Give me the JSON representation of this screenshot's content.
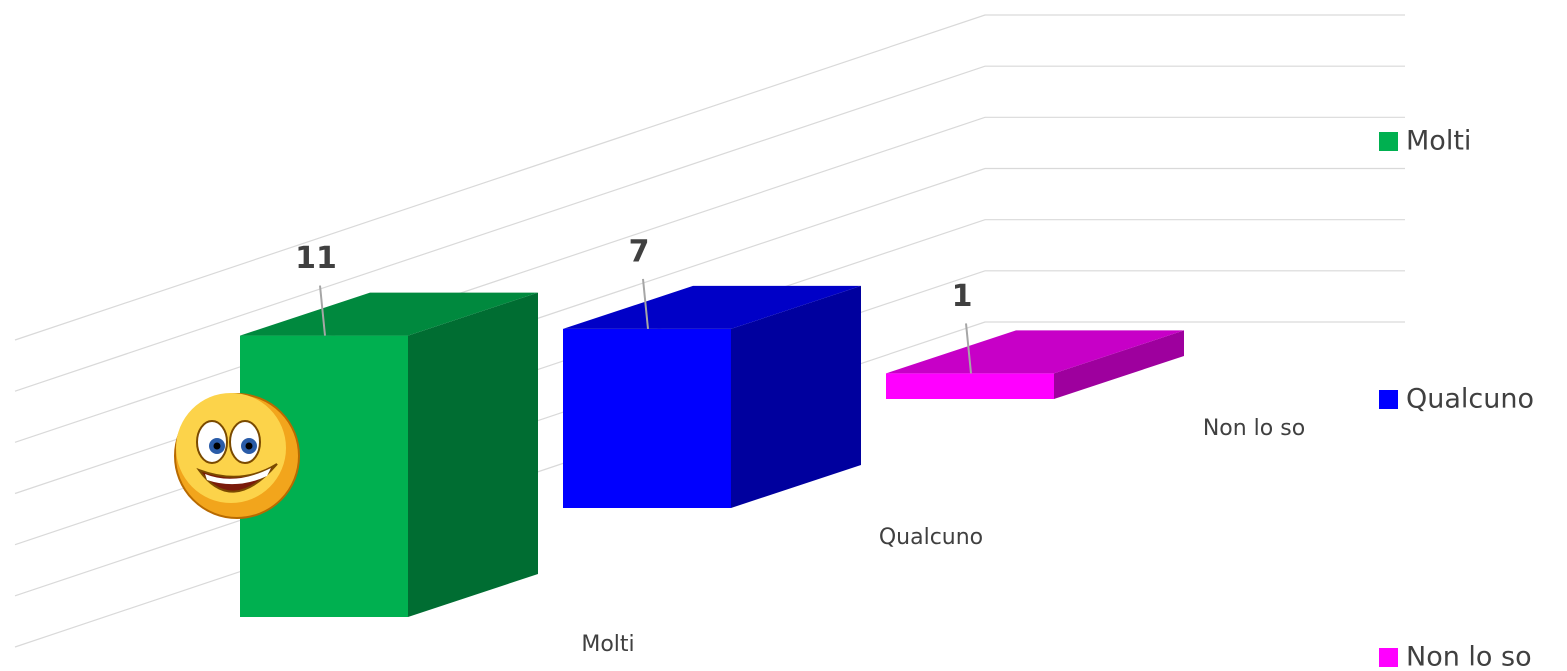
{
  "chart_data": {
    "type": "bar3d",
    "categories": [
      "Molti",
      "Qualcuno",
      "Non lo so"
    ],
    "values": [
      11,
      7,
      1
    ],
    "colors": [
      "#00b050",
      "#0000ff",
      "#ff00ff"
    ],
    "ylim": [
      0,
      12
    ],
    "yticks": [
      0,
      2,
      4,
      6,
      8,
      10,
      12
    ],
    "grid": true,
    "legend": "right"
  }
}
